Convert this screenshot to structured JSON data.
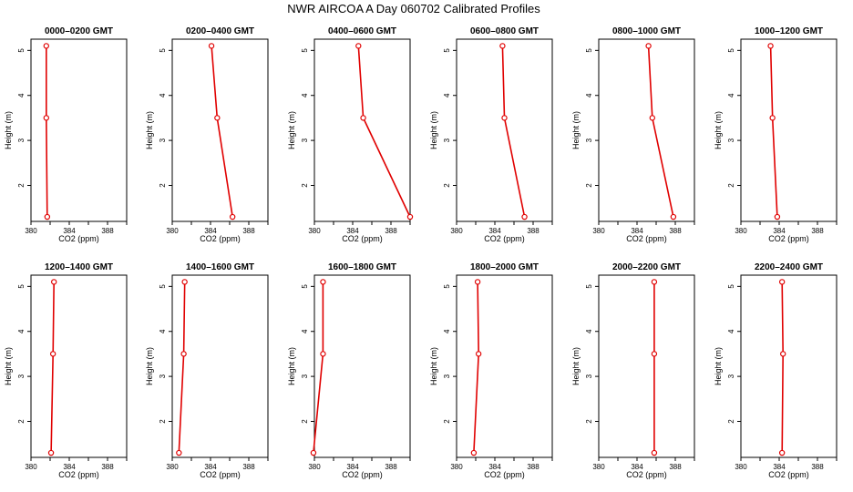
{
  "title": "NWR AIRCOA A  Day 060702  Calibrated Profiles",
  "chart_data": {
    "type": "line",
    "xlabel": "CO2 (ppm)",
    "ylabel": "Height (m)",
    "xlim": [
      380,
      390
    ],
    "ylim": [
      1.2,
      5.25
    ],
    "xticks": [
      380,
      382,
      384,
      386,
      388,
      390
    ],
    "xtick_labels": [
      "380",
      "384",
      "388"
    ],
    "yticks": [
      2,
      3,
      4,
      5
    ],
    "line_color": "#e00000",
    "marker_color": "#e00000",
    "panels": [
      {
        "title": "0000–0200 GMT",
        "heights": [
          5.1,
          3.5,
          1.3
        ],
        "co2": [
          381.6,
          381.6,
          381.7
        ]
      },
      {
        "title": "0200–0400 GMT",
        "heights": [
          5.1,
          3.5,
          1.3
        ],
        "co2": [
          384.1,
          384.7,
          386.3
        ]
      },
      {
        "title": "0400–0600 GMT",
        "heights": [
          5.1,
          3.5,
          1.3
        ],
        "co2": [
          384.6,
          385.1,
          390.0
        ]
      },
      {
        "title": "0600–0800 GMT",
        "heights": [
          5.1,
          3.5,
          1.3
        ],
        "co2": [
          384.8,
          385.0,
          387.1
        ]
      },
      {
        "title": "0800–1000 GMT",
        "heights": [
          5.1,
          3.5,
          1.3
        ],
        "co2": [
          385.2,
          385.6,
          387.8
        ]
      },
      {
        "title": "1000–1200 GMT",
        "heights": [
          5.1,
          3.5,
          1.3
        ],
        "co2": [
          383.1,
          383.3,
          383.8
        ]
      },
      {
        "title": "1200–1400 GMT",
        "heights": [
          5.1,
          3.5,
          1.3
        ],
        "co2": [
          382.4,
          382.3,
          382.1
        ]
      },
      {
        "title": "1400–1600 GMT",
        "heights": [
          5.1,
          3.5,
          1.3
        ],
        "co2": [
          381.3,
          381.2,
          380.7
        ]
      },
      {
        "title": "1600–1800 GMT",
        "heights": [
          5.1,
          3.5,
          1.3
        ],
        "co2": [
          380.9,
          380.9,
          379.9
        ]
      },
      {
        "title": "1800–2000 GMT",
        "heights": [
          5.1,
          3.5,
          1.3
        ],
        "co2": [
          382.2,
          382.3,
          381.8
        ]
      },
      {
        "title": "2000–2200 GMT",
        "heights": [
          5.1,
          3.5,
          1.3
        ],
        "co2": [
          385.8,
          385.8,
          385.8
        ]
      },
      {
        "title": "2200–2400 GMT",
        "heights": [
          5.1,
          3.5,
          1.3
        ],
        "co2": [
          384.3,
          384.4,
          384.3
        ]
      }
    ]
  }
}
